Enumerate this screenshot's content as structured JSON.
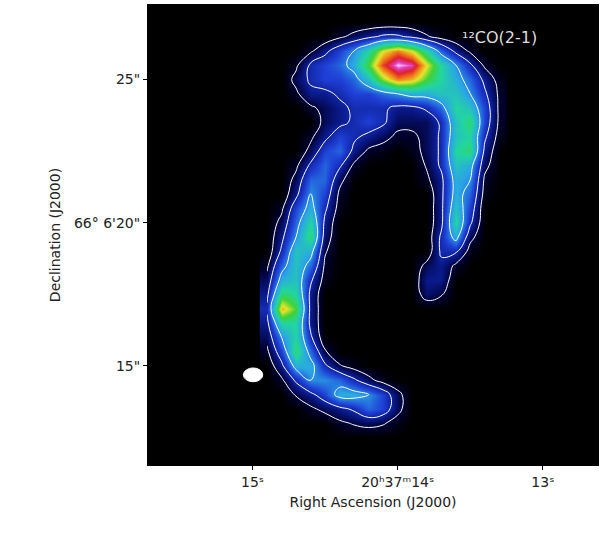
{
  "chart_data": {
    "type": "heatmap",
    "annotation": "¹²CO(2-1)",
    "x_label": "Right Ascension (J2000)",
    "y_label": "Declination (J2000)",
    "xlim": [
      15.72,
      12.62
    ],
    "ylim": [
      11.54,
      27.6
    ],
    "xticks": [
      {
        "value": 15,
        "label": "15ˢ"
      },
      {
        "value": 14,
        "label": "20ʰ37ᵐ14ˢ"
      },
      {
        "value": 13,
        "label": "13ˢ"
      }
    ],
    "yticks": [
      {
        "value": 25,
        "label": "25\""
      },
      {
        "value": 20,
        "label": "66° 6'20\""
      },
      {
        "value": 15,
        "label": "15\""
      }
    ],
    "grid": false,
    "zlim": [
      0,
      10
    ],
    "contour_levels": [
      0.7,
      1.8,
      3.5
    ],
    "x": [
      14.9,
      14.8,
      14.7,
      14.6,
      14.5,
      14.4,
      14.3,
      14.2,
      14.1,
      14.0,
      13.9,
      13.8,
      13.7,
      13.6,
      13.5,
      13.4,
      13.3
    ],
    "y": [
      27,
      26.5,
      26,
      25.5,
      25,
      24.5,
      24,
      23.5,
      23,
      22.5,
      22,
      21.5,
      21,
      20.5,
      20,
      19.5,
      19,
      18.5,
      18,
      17.5,
      17,
      16.5,
      16,
      15.5,
      15,
      14.5,
      14,
      13.5,
      13,
      12.5
    ],
    "z": [
      [
        0,
        0,
        0,
        0,
        0,
        0,
        0,
        0,
        0,
        0,
        0,
        0,
        0,
        0,
        0,
        0,
        0
      ],
      [
        0,
        0,
        0,
        0,
        0,
        0.5,
        1,
        1.5,
        2,
        2,
        1.5,
        0.8,
        0.3,
        0,
        0,
        0,
        0
      ],
      [
        0,
        0,
        0,
        0.5,
        1.5,
        2.5,
        3.5,
        5,
        7,
        8,
        7,
        5,
        3,
        1.5,
        0.5,
        0,
        0
      ],
      [
        0,
        0,
        0.5,
        2,
        2.5,
        3,
        4,
        6,
        8.5,
        10,
        9.5,
        7,
        5,
        3.5,
        2,
        0.5,
        0
      ],
      [
        0,
        0,
        1,
        2,
        2.5,
        2.5,
        3,
        4.5,
        6.5,
        8,
        7.5,
        6,
        5,
        4,
        3,
        1.5,
        0.3
      ],
      [
        0,
        0,
        0.5,
        1.5,
        1.5,
        2,
        2.5,
        2.5,
        3,
        3.5,
        4,
        4,
        4.5,
        4.5,
        3.5,
        2,
        0.5
      ],
      [
        0,
        0,
        0,
        0.5,
        1,
        1.5,
        2,
        2,
        2,
        1.5,
        1.5,
        2,
        3,
        5,
        4.5,
        2.5,
        0.5
      ],
      [
        0,
        0,
        0,
        0,
        1,
        1.5,
        2,
        2.5,
        2,
        1,
        1,
        1,
        2,
        4.5,
        5.5,
        2.5,
        0.5
      ],
      [
        0,
        0,
        0,
        0.5,
        1.5,
        2.5,
        2,
        1.5,
        1,
        0.5,
        0.5,
        1,
        2,
        4.5,
        5,
        2,
        0.3
      ],
      [
        0,
        0,
        0,
        1,
        2.5,
        3,
        1.5,
        0.5,
        0.3,
        0,
        0.3,
        1,
        2,
        5,
        5.5,
        1.5,
        0
      ],
      [
        0,
        0,
        0.5,
        2,
        3,
        2,
        0.5,
        0,
        0,
        0,
        0,
        0.8,
        2,
        4.5,
        4,
        1,
        0
      ],
      [
        0,
        0,
        1,
        3,
        3,
        1,
        0,
        0,
        0,
        0,
        0,
        0.5,
        1.5,
        4,
        3.5,
        0.5,
        0
      ],
      [
        0,
        0,
        1.5,
        3.5,
        2.5,
        0.5,
        0,
        0,
        0,
        0,
        0,
        0,
        1.5,
        4,
        3,
        0.3,
        0
      ],
      [
        0,
        0.5,
        2.5,
        4,
        2,
        0.3,
        0,
        0,
        0,
        0,
        0,
        0,
        1.5,
        4.5,
        2.5,
        0,
        0
      ],
      [
        0,
        1,
        3,
        5,
        1.5,
        0,
        0,
        0,
        0,
        0,
        0,
        0,
        1.5,
        5,
        2,
        0,
        0
      ],
      [
        0,
        1.5,
        3.5,
        5.5,
        1.2,
        0,
        0,
        0,
        0,
        0,
        0,
        0,
        2,
        4,
        1,
        0,
        0
      ],
      [
        0,
        2,
        4.5,
        4,
        0.8,
        0,
        0,
        0,
        0,
        0,
        0,
        0,
        2,
        2,
        0.3,
        0,
        0
      ],
      [
        0.5,
        3,
        4.5,
        3,
        0.5,
        0,
        0,
        0,
        0,
        0,
        0,
        1,
        1.5,
        0.5,
        0,
        0,
        0
      ],
      [
        1,
        4,
        4.5,
        2,
        0.3,
        0,
        0,
        0,
        0,
        0,
        0,
        1.5,
        1.5,
        0,
        0,
        0,
        0
      ],
      [
        1.5,
        5.5,
        5,
        1.5,
        0,
        0,
        0,
        0,
        0,
        0,
        0,
        1.2,
        0.8,
        0,
        0,
        0,
        0
      ],
      [
        2,
        7.5,
        6,
        1.5,
        0,
        0,
        0,
        0,
        0,
        0,
        0,
        0,
        0,
        0,
        0,
        0,
        0
      ],
      [
        1.5,
        5,
        5,
        1.5,
        0,
        0,
        0,
        0,
        0,
        0,
        0,
        0,
        0,
        0,
        0,
        0,
        0
      ],
      [
        1,
        3.5,
        5,
        2,
        0,
        0,
        0,
        0,
        0,
        0,
        0,
        0,
        0,
        0,
        0,
        0,
        0
      ],
      [
        0.5,
        2.5,
        5.5,
        3,
        0.8,
        0,
        0,
        0,
        0,
        0,
        0,
        0,
        0,
        0,
        0,
        0,
        0
      ],
      [
        0,
        1.5,
        4,
        4,
        2,
        0.8,
        0.3,
        0,
        0,
        0,
        0,
        0,
        0,
        0,
        0,
        0,
        0
      ],
      [
        0,
        0.5,
        2,
        3.5,
        3.5,
        3,
        2,
        1,
        0.3,
        0,
        0,
        0,
        0,
        0,
        0,
        0,
        0
      ],
      [
        0,
        0,
        0.8,
        1.5,
        2.5,
        4,
        4,
        3.5,
        2.5,
        1,
        0,
        0,
        0,
        0,
        0,
        0,
        0
      ],
      [
        0,
        0,
        0,
        0.5,
        1,
        1.5,
        2,
        3,
        2.5,
        1,
        0,
        0,
        0,
        0,
        0,
        0,
        0
      ],
      [
        0,
        0,
        0,
        0,
        0,
        0.5,
        0.8,
        1,
        0.8,
        0.3,
        0,
        0,
        0,
        0,
        0,
        0,
        0
      ],
      [
        0,
        0,
        0,
        0,
        0,
        0,
        0,
        0,
        0,
        0,
        0,
        0,
        0,
        0,
        0,
        0,
        0
      ]
    ]
  }
}
